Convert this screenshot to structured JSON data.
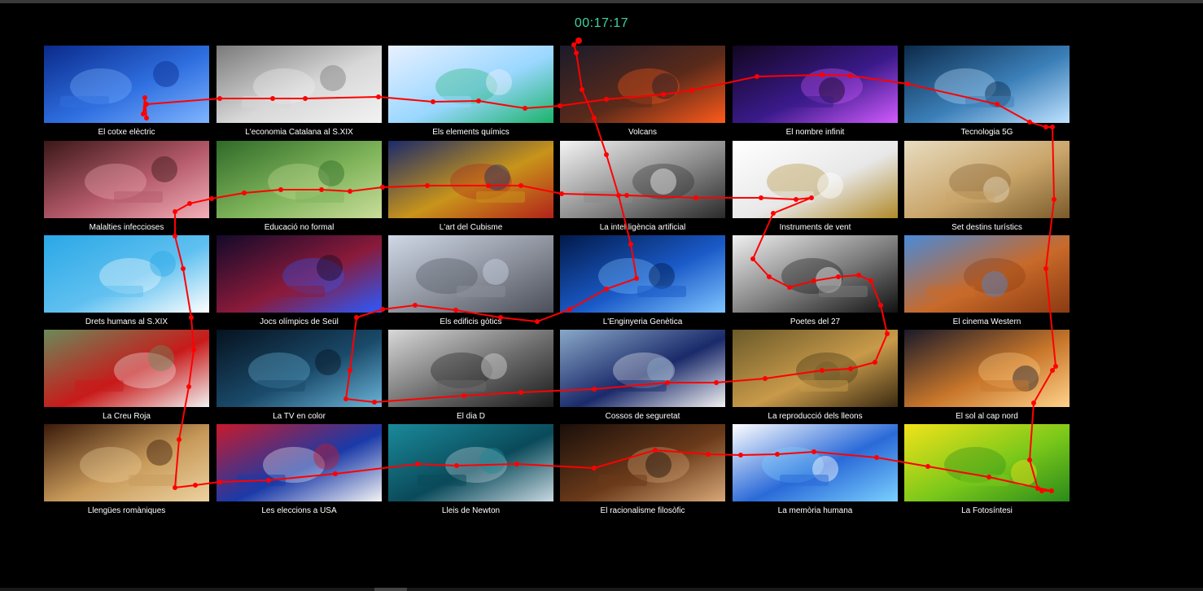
{
  "timer": "00:17:17",
  "tiles": [
    {
      "label": "El cotxe elèctric",
      "icon": "electric-car-image",
      "colors": [
        "#0a2a8a",
        "#2f6fe0",
        "#7fb4ff"
      ]
    },
    {
      "label": "L'economia Catalana al S.XIX",
      "icon": "textile-factory-image",
      "colors": [
        "#7a7a7a",
        "#d8d8d8",
        "#f2f2f2"
      ]
    },
    {
      "label": "Els elements químics",
      "icon": "chemistry-flask-image",
      "colors": [
        "#e8f0ff",
        "#9ad7ff",
        "#1bb36a"
      ]
    },
    {
      "label": "Volcans",
      "icon": "volcano-image",
      "colors": [
        "#1b1b2a",
        "#5a2a1a",
        "#ff5a1a"
      ]
    },
    {
      "label": "El nombre infinit",
      "icon": "infinity-symbol-image",
      "colors": [
        "#12061f",
        "#3a1a8a",
        "#d25aff"
      ]
    },
    {
      "label": "Tecnologia 5G",
      "icon": "smart-city-image",
      "colors": [
        "#0c2a4a",
        "#3b7fb8",
        "#bfe2ff"
      ]
    },
    {
      "label": "Malalties infeccioses",
      "icon": "bacteria-image",
      "colors": [
        "#3a1818",
        "#b55a6a",
        "#f2b0b8"
      ]
    },
    {
      "label": "Educació no formal",
      "icon": "kids-playing-image",
      "colors": [
        "#2f6a28",
        "#7fb45a",
        "#c9dd9a"
      ]
    },
    {
      "label": "L'art del Cubisme",
      "icon": "cubist-painting-image",
      "colors": [
        "#1a2a6a",
        "#c8941a",
        "#b2221a"
      ]
    },
    {
      "label": "La intel.ligència artificial",
      "icon": "ai-face-image",
      "colors": [
        "#f4f4f4",
        "#8a8a8a",
        "#2a2a2a"
      ]
    },
    {
      "label": "Instruments de vent",
      "icon": "wind-instruments-image",
      "colors": [
        "#ffffff",
        "#e8e8e8",
        "#b08a2a"
      ]
    },
    {
      "label": "Set destins turístics",
      "icon": "pyramids-image",
      "colors": [
        "#e8dcc0",
        "#c9a56a",
        "#7a5a2a"
      ]
    },
    {
      "label": "Drets humans al S.XIX",
      "icon": "human-rights-image",
      "colors": [
        "#2aa8e6",
        "#5fc0f0",
        "#ffffff"
      ]
    },
    {
      "label": "Jocs olímpics de Seül",
      "icon": "olympic-rings-image",
      "colors": [
        "#120a2a",
        "#8a1a3a",
        "#2a5aff"
      ]
    },
    {
      "label": "Els edificis gòtics",
      "icon": "notre-dame-image",
      "colors": [
        "#cfd8e6",
        "#8a8f9a",
        "#4a4f5a"
      ]
    },
    {
      "label": "L'Enginyeria Genètica",
      "icon": "dna-helix-image",
      "colors": [
        "#021a4a",
        "#1a5ac8",
        "#7fc4ff"
      ]
    },
    {
      "label": "Poetes del 27",
      "icon": "poet-portrait-image",
      "colors": [
        "#f0f0f0",
        "#7a7a7a",
        "#111111"
      ]
    },
    {
      "label": "El cinema Western",
      "icon": "desert-canyon-image",
      "colors": [
        "#4a8ad8",
        "#c86a2a",
        "#8a3a12"
      ]
    },
    {
      "label": "La Creu Roja",
      "icon": "red-cross-volunteers-image",
      "colors": [
        "#6a8a5a",
        "#c81a1a",
        "#f2f2f2"
      ]
    },
    {
      "label": "La TV en color",
      "icon": "tv-screens-image",
      "colors": [
        "#06121f",
        "#1a4a6a",
        "#6ab4d8"
      ]
    },
    {
      "label": "El dia D",
      "icon": "d-day-soldiers-image",
      "colors": [
        "#d8d8d8",
        "#6a6a6a",
        "#1a1a1a"
      ]
    },
    {
      "label": "Cossos de seguretat",
      "icon": "police-cars-image",
      "colors": [
        "#8aa8c8",
        "#1a2a6a",
        "#f2f2f2"
      ]
    },
    {
      "label": "La reproducció dels lleons",
      "icon": "lion-image",
      "colors": [
        "#6a5a2a",
        "#c89a4a",
        "#3a2a12"
      ]
    },
    {
      "label": "El sol al cap nord",
      "icon": "sunset-cliff-image",
      "colors": [
        "#1a1a2a",
        "#c8762a",
        "#ffd28a"
      ]
    },
    {
      "label": "Llengües romàniques",
      "icon": "old-manuscript-image",
      "colors": [
        "#3a1a0a",
        "#c89a5a",
        "#ecd2a0"
      ]
    },
    {
      "label": "Les eleccions a USA",
      "icon": "vote-buttons-image",
      "colors": [
        "#c81a2a",
        "#1a3aa8",
        "#f4f4f4"
      ]
    },
    {
      "label": "Lleis de Newton",
      "icon": "newton-cradle-image",
      "colors": [
        "#1a8a9a",
        "#0a4a5a",
        "#c8d8e0"
      ]
    },
    {
      "label": "El racionalisme filosòfic",
      "icon": "philosophers-portraits-image",
      "colors": [
        "#1a0f0a",
        "#6a3a1a",
        "#d8a878"
      ]
    },
    {
      "label": "La memòria humana",
      "icon": "brain-image",
      "colors": [
        "#ffffff",
        "#2a6ad8",
        "#7ad0ff"
      ]
    },
    {
      "label": "La Fotosíntesi",
      "icon": "leaf-veins-image",
      "colors": [
        "#f2e21a",
        "#7ac81a",
        "#2a8a1a"
      ]
    }
  ],
  "overlay": {
    "name": "gaze-scanpath",
    "color": "#ff0000"
  }
}
